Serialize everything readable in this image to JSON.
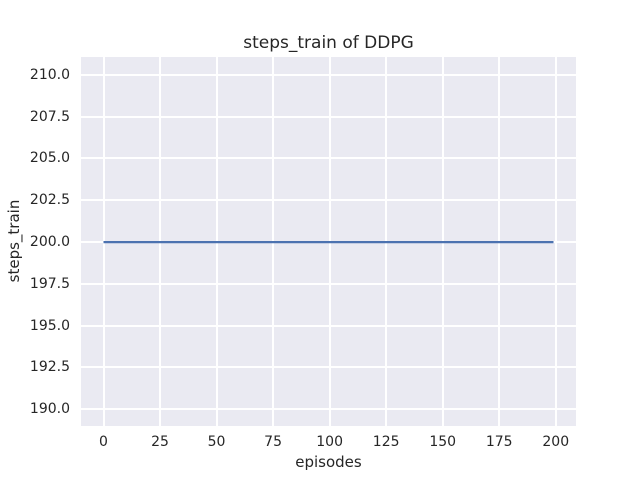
{
  "chart_data": {
    "type": "line",
    "title": "steps_train of DDPG",
    "xlabel": "episodes",
    "ylabel": "steps_train",
    "x_ticks": [
      0,
      25,
      50,
      75,
      100,
      125,
      150,
      175,
      200
    ],
    "x_tick_labels": [
      "0",
      "25",
      "50",
      "75",
      "100",
      "125",
      "150",
      "175",
      "200"
    ],
    "y_ticks": [
      190.0,
      192.5,
      195.0,
      197.5,
      200.0,
      202.5,
      205.0,
      207.5,
      210.0
    ],
    "y_tick_labels": [
      "190.0",
      "192.5",
      "195.0",
      "197.5",
      "200.0",
      "202.5",
      "205.0",
      "207.5",
      "210.0"
    ],
    "xlim": [
      -9.95,
      208.95
    ],
    "ylim": [
      189.0,
      211.07
    ],
    "grid": true,
    "legend_position": "none",
    "series": [
      {
        "name": "steps_train",
        "color": "#4c72b0",
        "points": [
          [
            0,
            200
          ],
          [
            199,
            200
          ]
        ]
      }
    ],
    "colors": {
      "figure_background": "#ffffff",
      "plot_background": "#eaeaf2",
      "gridline": "#ffffff",
      "line": "#4c72b0",
      "text": "#262626"
    }
  }
}
